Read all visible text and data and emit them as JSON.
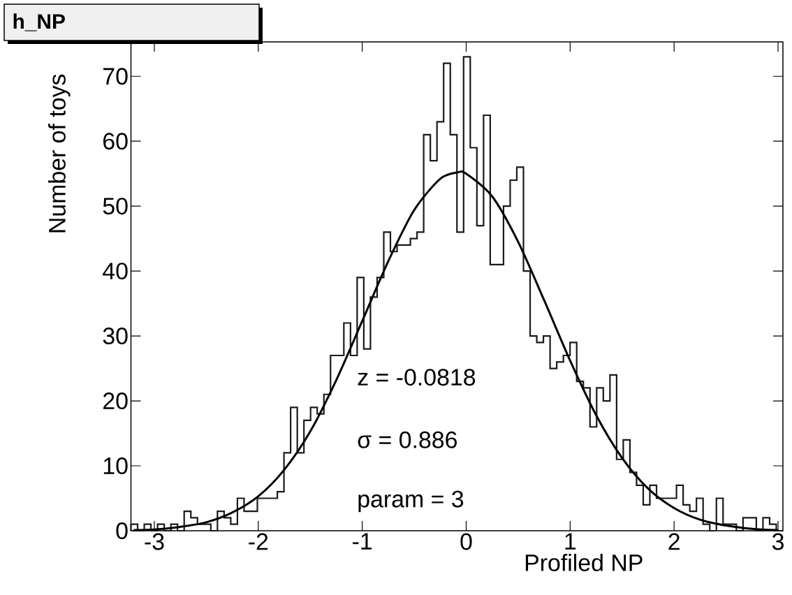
{
  "chart_data": {
    "type": "histogram",
    "title": "h_NP",
    "xlabel": "Profiled NP",
    "ylabel": "Number of toys",
    "annotations": [
      "z = -0.0818",
      "σ = 0.886",
      "param = 3"
    ],
    "xlim": [
      -3.225,
      3.047
    ],
    "ylim": [
      0,
      75.3
    ],
    "xticks": [
      -3,
      -2,
      -1,
      0,
      1,
      2,
      3
    ],
    "yticks": [
      0,
      10,
      20,
      30,
      40,
      50,
      60,
      70
    ],
    "marker": "none",
    "series": [
      {
        "color": "#1a1a1a",
        "bins": [
          -3.225,
          -3.161,
          -3.097,
          -3.033,
          -2.969,
          -2.905,
          -2.841,
          -2.777,
          -2.713,
          -2.649,
          -2.585,
          -2.521,
          -2.457,
          -2.393,
          -2.329,
          -2.265,
          -2.201,
          -2.137,
          -2.073,
          -2.009,
          -1.945,
          -1.881,
          -1.817,
          -1.753,
          -1.689,
          -1.625,
          -1.561,
          -1.497,
          -1.433,
          -1.369,
          -1.305,
          -1.241,
          -1.177,
          -1.113,
          -1.049,
          -0.985,
          -0.921,
          -0.857,
          -0.793,
          -0.729,
          -0.665,
          -0.601,
          -0.537,
          -0.473,
          -0.409,
          -0.345,
          -0.281,
          -0.217,
          -0.153,
          -0.089,
          -0.025,
          0.039,
          0.103,
          0.167,
          0.231,
          0.295,
          0.359,
          0.423,
          0.487,
          0.551,
          0.615,
          0.679,
          0.743,
          0.807,
          0.871,
          0.935,
          0.999,
          1.063,
          1.127,
          1.191,
          1.255,
          1.319,
          1.383,
          1.447,
          1.511,
          1.575,
          1.639,
          1.703,
          1.767,
          1.831,
          1.895,
          1.959,
          2.023,
          2.087,
          2.151,
          2.215,
          2.279,
          2.343,
          2.407,
          2.471,
          2.535,
          2.599,
          2.663,
          2.727,
          2.791,
          2.855,
          2.919,
          2.983,
          3.047
        ],
        "values": [
          1,
          0,
          1,
          0,
          1,
          0,
          1,
          0,
          3,
          2,
          1,
          1,
          0,
          3,
          2,
          1,
          5,
          3,
          3,
          5,
          5,
          5,
          6,
          12,
          19,
          12,
          17,
          19,
          18,
          21,
          27,
          27,
          32,
          27,
          39,
          28,
          36,
          39,
          46,
          43,
          44,
          44,
          45,
          46,
          61,
          57,
          63,
          72,
          61,
          46,
          73,
          59,
          47,
          64,
          41,
          41,
          50,
          54,
          56,
          40,
          30,
          29,
          30,
          25,
          26,
          27,
          29,
          23,
          22,
          16,
          22,
          20,
          24,
          11,
          14,
          9,
          7,
          4,
          7,
          5,
          5,
          5,
          7,
          4,
          3,
          5,
          1,
          0,
          5,
          1,
          1,
          0,
          2,
          2,
          0,
          2,
          1,
          0
        ]
      },
      {
        "type": "line",
        "color": "#000000",
        "x": [
          -3.2,
          -3.0,
          -2.75,
          -2.5,
          -2.25,
          -2.0,
          -1.75,
          -1.5,
          -1.25,
          -1.0,
          -0.75,
          -0.5,
          -0.25,
          -0.082,
          0,
          0.25,
          0.5,
          0.75,
          1.0,
          1.25,
          1.5,
          1.75,
          2.0,
          2.25,
          2.5,
          2.75,
          3.0
        ],
        "values": [
          0.1,
          0.2,
          0.6,
          1.3,
          2.8,
          5.3,
          9.4,
          15.3,
          23.2,
          32.3,
          41.5,
          49.4,
          54.2,
          55.2,
          55.0,
          51.5,
          44.5,
          35.5,
          26.2,
          17.8,
          11.2,
          6.5,
          3.5,
          1.7,
          0.8,
          0.3,
          0.1
        ]
      }
    ]
  }
}
